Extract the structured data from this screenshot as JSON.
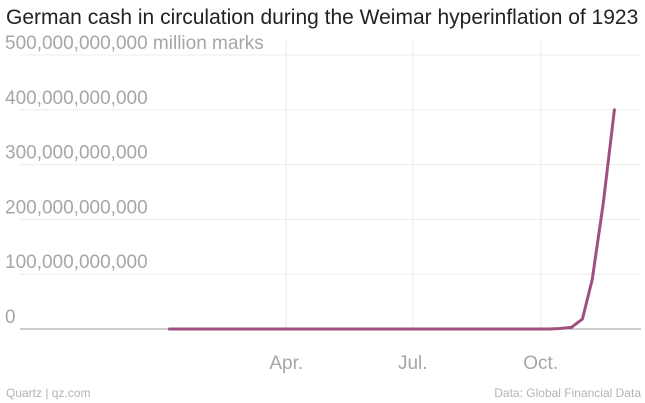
{
  "chart_data": {
    "type": "line",
    "title": "German cash in circulation during the Weimar hyperinflation of 1923",
    "unit_label": "million marks",
    "y_ticks": [
      0,
      100000000000,
      200000000000,
      300000000000,
      400000000000,
      500000000000
    ],
    "y_tick_labels": [
      "0",
      "100,000,000,000",
      "200,000,000,000",
      "300,000,000,000",
      "400,000,000,000",
      "500,000,000,000"
    ],
    "ylim": [
      0,
      500000000000
    ],
    "x_ticks": [
      {
        "label": "Apr.",
        "date": "1923-04-01"
      },
      {
        "label": "Jul.",
        "date": "1923-07-01"
      },
      {
        "label": "Oct.",
        "date": "1923-10-01"
      }
    ],
    "xlim": [
      "1922-12-01",
      "1923-12-15"
    ],
    "grid": true,
    "series": [
      {
        "color": "#a0507f",
        "points": [
          {
            "x": "1923-01-07",
            "y": 0
          },
          {
            "x": "1923-02-07",
            "y": 0
          },
          {
            "x": "1923-03-07",
            "y": 0
          },
          {
            "x": "1923-04-07",
            "y": 0
          },
          {
            "x": "1923-05-07",
            "y": 0
          },
          {
            "x": "1923-06-07",
            "y": 0
          },
          {
            "x": "1923-07-07",
            "y": 0
          },
          {
            "x": "1923-08-07",
            "y": 0
          },
          {
            "x": "1923-09-07",
            "y": 0
          },
          {
            "x": "1923-09-30",
            "y": 0
          },
          {
            "x": "1923-10-07",
            "y": 0
          },
          {
            "x": "1923-10-15",
            "y": 1000000000
          },
          {
            "x": "1923-10-23",
            "y": 3000000000
          },
          {
            "x": "1923-10-31",
            "y": 18000000000
          },
          {
            "x": "1923-11-07",
            "y": 90000000000
          },
          {
            "x": "1923-11-15",
            "y": 230000000000
          },
          {
            "x": "1923-11-23",
            "y": 400000000000
          }
        ]
      }
    ]
  },
  "footer": {
    "source_left": "Quartz | qz.com",
    "source_right": "Data: Global Financial Data"
  }
}
